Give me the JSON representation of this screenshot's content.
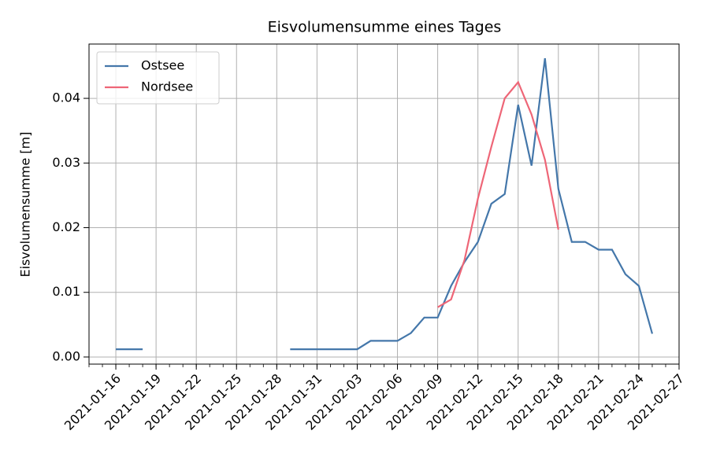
{
  "chart_data": {
    "type": "line",
    "title": "Eisvolumensumme eines Tages",
    "ylabel": "Eisvolumensumme [m]",
    "x": [
      "2021-01-16",
      "2021-01-17",
      "2021-01-18",
      "2021-01-19",
      "2021-01-20",
      "2021-01-21",
      "2021-01-22",
      "2021-01-23",
      "2021-01-24",
      "2021-01-25",
      "2021-01-26",
      "2021-01-27",
      "2021-01-28",
      "2021-01-29",
      "2021-01-30",
      "2021-01-31",
      "2021-02-01",
      "2021-02-02",
      "2021-02-03",
      "2021-02-04",
      "2021-02-05",
      "2021-02-06",
      "2021-02-07",
      "2021-02-08",
      "2021-02-09",
      "2021-02-10",
      "2021-02-11",
      "2021-02-12",
      "2021-02-13",
      "2021-02-14",
      "2021-02-15",
      "2021-02-16",
      "2021-02-17",
      "2021-02-18",
      "2021-02-19",
      "2021-02-20",
      "2021-02-21",
      "2021-02-22",
      "2021-02-23",
      "2021-02-24",
      "2021-02-25"
    ],
    "series": [
      {
        "name": "Ostsee",
        "color": "#4477aa",
        "values": [
          0.0012,
          0.0012,
          0.0012,
          null,
          null,
          null,
          null,
          null,
          null,
          null,
          null,
          null,
          null,
          0.0012,
          0.0012,
          0.0012,
          0.0012,
          0.0012,
          0.0012,
          0.0025,
          0.0025,
          0.0025,
          0.0037,
          0.0061,
          0.0061,
          0.011,
          0.0147,
          0.0178,
          0.0237,
          0.0252,
          0.039,
          0.0296,
          0.0462,
          0.026,
          0.0178,
          0.0178,
          0.0166,
          0.0166,
          0.0128,
          0.011,
          0.0036
        ]
      },
      {
        "name": "Nordsee",
        "color": "#ee6677",
        "values": [
          null,
          null,
          null,
          null,
          null,
          null,
          null,
          null,
          null,
          null,
          null,
          null,
          null,
          null,
          null,
          null,
          null,
          null,
          null,
          null,
          null,
          null,
          null,
          null,
          0.0077,
          0.0089,
          0.015,
          0.0245,
          0.0325,
          0.04,
          0.0425,
          0.0375,
          0.0305,
          0.0197,
          null,
          null,
          null,
          null,
          null,
          null,
          null
        ]
      }
    ],
    "xlim": [
      "2021-01-14",
      "2021-02-27"
    ],
    "xticks": [
      "2021-01-16",
      "2021-01-19",
      "2021-01-22",
      "2021-01-25",
      "2021-01-28",
      "2021-01-31",
      "2021-02-03",
      "2021-02-06",
      "2021-02-09",
      "2021-02-12",
      "2021-02-15",
      "2021-02-18",
      "2021-02-21",
      "2021-02-24",
      "2021-02-27"
    ],
    "ylim": [
      -0.0011,
      0.0484
    ],
    "yticks": [
      {
        "value": 0,
        "label": "0.00"
      },
      0.01,
      0.02,
      0.03,
      0.04
    ],
    "grid": true,
    "legend": "upper left"
  }
}
